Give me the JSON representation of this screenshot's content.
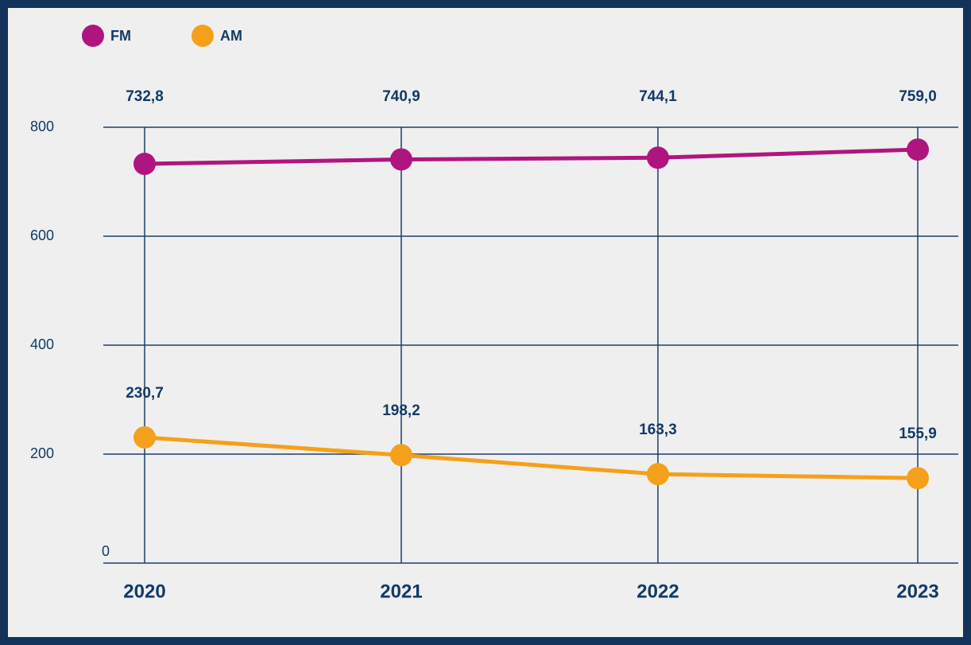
{
  "chart_data": {
    "type": "line",
    "categories": [
      "2020",
      "2021",
      "2022",
      "2023"
    ],
    "series": [
      {
        "name": "FM",
        "color": "#b0157f",
        "values": [
          732.8,
          740.9,
          744.1,
          759.0
        ],
        "value_labels": [
          "732,8",
          "740,9",
          "744,1",
          "759,0"
        ]
      },
      {
        "name": "AM",
        "color": "#f5a01a",
        "values": [
          230.7,
          198.2,
          163.3,
          155.9
        ],
        "value_labels": [
          "230,7",
          "198,2",
          "163,3",
          "155,9"
        ]
      }
    ],
    "ylim": [
      0,
      800
    ],
    "yticks": [
      0,
      200,
      400,
      600,
      800
    ],
    "grid": true,
    "legend": "top-left"
  }
}
